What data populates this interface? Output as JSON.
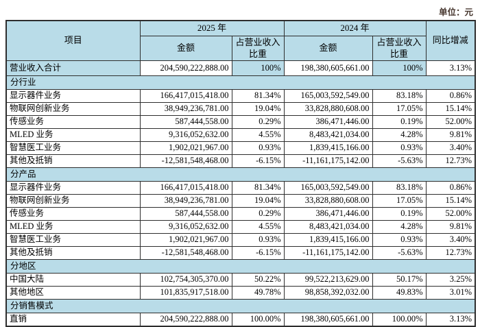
{
  "unit_label": "单位：元",
  "colors": {
    "band_blue": "#b9dce8",
    "border": "#2d2d2d",
    "unit_text": "#46362e"
  },
  "table": {
    "header": {
      "item": "项目",
      "year_2025": "2025 年",
      "year_2024": "2024 年",
      "amount": "金额",
      "pct": "占营业收入比重",
      "yoy": "同比增减"
    },
    "total_row": {
      "label": "营业收入合计",
      "a2025": "204,590,222,888.00",
      "p2025": "100%",
      "a2024": "198,380,605,661.00",
      "p2024": "100%",
      "yoy": "3.13%"
    },
    "sections": [
      {
        "title": "分行业",
        "rows": [
          {
            "label": "显示器件业务",
            "a2025": "166,417,015,418.00",
            "p2025": "81.34%",
            "a2024": "165,003,592,549.00",
            "p2024": "83.18%",
            "yoy": "0.86%"
          },
          {
            "label": "物联网创新业务",
            "a2025": "38,949,236,781.00",
            "p2025": "19.04%",
            "a2024": "33,828,880,608.00",
            "p2024": "17.05%",
            "yoy": "15.14%"
          },
          {
            "label": "传感业务",
            "a2025": "587,444,558.00",
            "p2025": "0.29%",
            "a2024": "386,471,446.00",
            "p2024": "0.19%",
            "yoy": "52.00%"
          },
          {
            "label": "MLED 业务",
            "a2025": "9,316,052,632.00",
            "p2025": "4.55%",
            "a2024": "8,483,421,034.00",
            "p2024": "4.28%",
            "yoy": "9.81%"
          },
          {
            "label": "智慧医工业务",
            "a2025": "1,902,021,967.00",
            "p2025": "0.93%",
            "a2024": "1,839,415,166.00",
            "p2024": "0.93%",
            "yoy": "3.40%"
          },
          {
            "label": "其他及抵销",
            "a2025": "-12,581,548,468.00",
            "p2025": "-6.15%",
            "a2024": "-11,161,175,142.00",
            "p2024": "-5.63%",
            "yoy": "12.73%"
          }
        ]
      },
      {
        "title": "分产品",
        "rows": [
          {
            "label": "显示器件业务",
            "a2025": "166,417,015,418.00",
            "p2025": "81.34%",
            "a2024": "165,003,592,549.00",
            "p2024": "83.18%",
            "yoy": "0.86%"
          },
          {
            "label": "物联网创新业务",
            "a2025": "38,949,236,781.00",
            "p2025": "19.04%",
            "a2024": "33,828,880,608.00",
            "p2024": "17.05%",
            "yoy": "15.14%"
          },
          {
            "label": "传感业务",
            "a2025": "587,444,558.00",
            "p2025": "0.29%",
            "a2024": "386,471,446.00",
            "p2024": "0.19%",
            "yoy": "52.00%"
          },
          {
            "label": "MLED 业务",
            "a2025": "9,316,052,632.00",
            "p2025": "4.55%",
            "a2024": "8,483,421,034.00",
            "p2024": "4.28%",
            "yoy": "9.81%"
          },
          {
            "label": "智慧医工业务",
            "a2025": "1,902,021,967.00",
            "p2025": "0.93%",
            "a2024": "1,839,415,166.00",
            "p2024": "0.93%",
            "yoy": "3.40%"
          },
          {
            "label": "其他及抵销",
            "a2025": "-12,581,548,468.00",
            "p2025": "-6.15%",
            "a2024": "-11,161,175,142.00",
            "p2024": "-5.63%",
            "yoy": "12.73%"
          }
        ]
      },
      {
        "title": "分地区",
        "rows": [
          {
            "label": "中国大陆",
            "a2025": "102,754,305,370.00",
            "p2025": "50.22%",
            "a2024": "99,522,213,629.00",
            "p2024": "50.17%",
            "yoy": "3.25%"
          },
          {
            "label": "其他地区",
            "a2025": "101,835,917,518.00",
            "p2025": "49.78%",
            "a2024": "98,858,392,032.00",
            "p2024": "49.83%",
            "yoy": "3.01%"
          }
        ]
      },
      {
        "title": "分销售模式",
        "rows": [
          {
            "label": "直销",
            "a2025": "204,590,222,888.00",
            "p2025": "100.00%",
            "a2024": "198,380,605,661.00",
            "p2024": "100.00%",
            "yoy": "3.13%"
          }
        ]
      }
    ]
  }
}
